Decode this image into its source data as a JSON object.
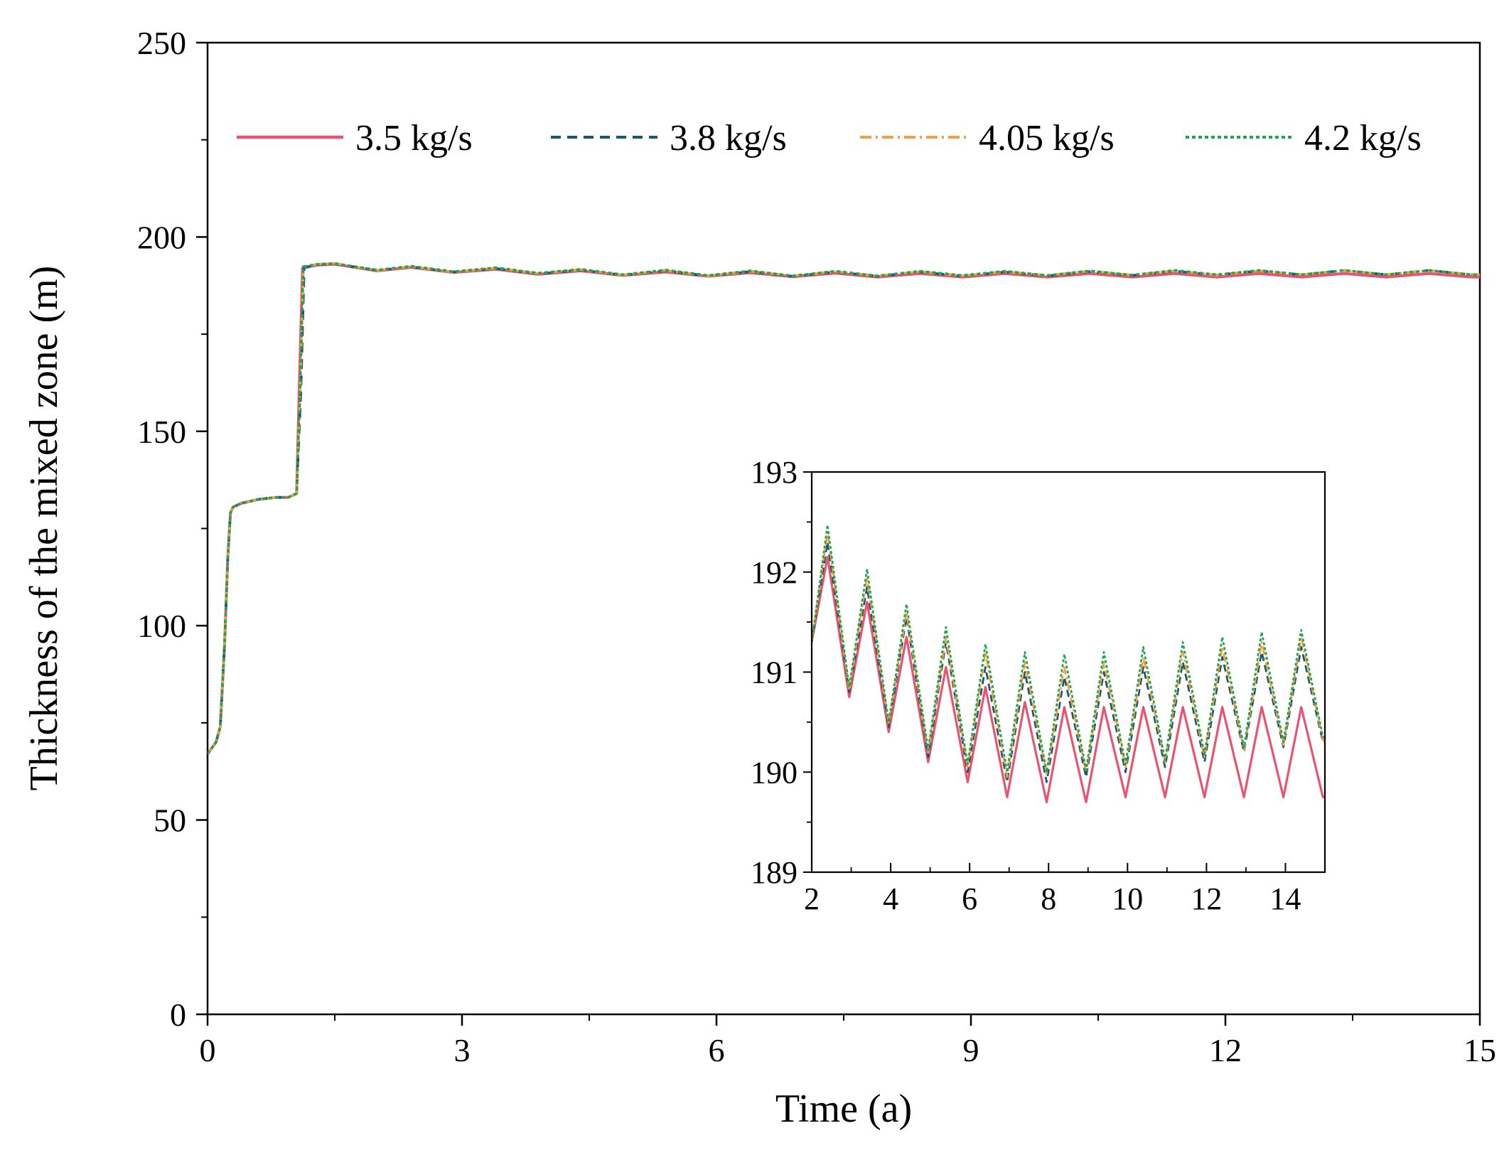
{
  "chart_data": [
    {
      "id": "main",
      "type": "line",
      "title": "",
      "xlabel": "Time (a)",
      "ylabel": "Thickness of the mixed zone (m)",
      "xlim": [
        0,
        15
      ],
      "ylim": [
        0,
        250
      ],
      "xticks": [
        0,
        3,
        6,
        9,
        12,
        15
      ],
      "yticks": [
        0,
        50,
        100,
        150,
        200,
        250
      ],
      "legend_position": "top",
      "series": [
        {
          "name": "3.5 kg/s",
          "color": "#e8546f",
          "style": "solid",
          "x": [
            0,
            0.1,
            0.15,
            0.2,
            0.24,
            0.27,
            0.3,
            0.4,
            0.6,
            0.8,
            0.95,
            1.05,
            1.08,
            1.12,
            1.3,
            1.5,
            2.0,
            2.4,
            2.9,
            3.4,
            3.9,
            4.4,
            4.9,
            5.4,
            5.9,
            6.4,
            6.9,
            7.4,
            7.9,
            8.4,
            8.9,
            9.4,
            9.9,
            10.4,
            10.9,
            11.4,
            11.9,
            12.4,
            12.9,
            13.4,
            13.9,
            14.4,
            14.9,
            15
          ],
          "y": [
            67,
            70,
            74,
            95,
            118,
            129,
            130.5,
            131.5,
            132.5,
            133,
            133,
            134,
            160,
            192,
            192.8,
            193,
            191.3,
            192.2,
            190.9,
            191.7,
            190.4,
            191.3,
            190.1,
            191.0,
            189.9,
            190.8,
            189.8,
            190.7,
            189.7,
            190.6,
            189.7,
            190.6,
            189.7,
            190.6,
            189.7,
            190.6,
            189.7,
            190.6,
            189.7,
            190.6,
            189.7,
            190.6,
            189.7,
            189.7
          ]
        },
        {
          "name": "3.8 kg/s",
          "color": "#17547a",
          "style": "dashed",
          "x": [
            0,
            0.1,
            0.15,
            0.2,
            0.24,
            0.27,
            0.3,
            0.4,
            0.6,
            0.8,
            0.95,
            1.05,
            1.1,
            1.14,
            1.3,
            1.5,
            2.0,
            2.4,
            2.9,
            3.4,
            3.9,
            4.4,
            4.9,
            5.4,
            5.9,
            6.4,
            6.9,
            7.4,
            7.9,
            8.4,
            8.9,
            9.4,
            9.9,
            10.4,
            10.9,
            11.4,
            11.9,
            12.4,
            12.9,
            13.4,
            13.9,
            14.4,
            14.9,
            15
          ],
          "y": [
            67,
            70,
            74,
            95,
            118,
            129,
            130.5,
            131.5,
            132.5,
            133,
            133,
            134,
            160,
            192.2,
            192.9,
            193.1,
            191.4,
            192.3,
            191.0,
            191.9,
            190.5,
            191.5,
            190.2,
            191.3,
            190.0,
            191.1,
            189.9,
            191.0,
            189.9,
            191.0,
            189.9,
            191.0,
            190.0,
            191.1,
            190.1,
            191.2,
            190.2,
            191.3,
            190.3,
            191.4,
            190.3,
            191.4,
            190.3,
            190.3
          ]
        },
        {
          "name": "4.05 kg/s",
          "color": "#f5a040",
          "style": "dashdot",
          "x": [
            0,
            0.1,
            0.15,
            0.2,
            0.24,
            0.27,
            0.3,
            0.4,
            0.6,
            0.8,
            0.95,
            1.05,
            1.09,
            1.13,
            1.3,
            1.5,
            2.0,
            2.4,
            2.9,
            3.4,
            3.9,
            4.4,
            4.9,
            5.4,
            5.9,
            6.4,
            6.9,
            7.4,
            7.9,
            8.4,
            8.9,
            9.4,
            9.9,
            10.4,
            10.9,
            11.4,
            11.9,
            12.4,
            12.9,
            13.4,
            13.9,
            14.4,
            14.9,
            15
          ],
          "y": [
            67,
            70,
            74,
            95,
            118,
            129,
            130.5,
            131.5,
            132.5,
            133,
            133,
            134,
            160,
            192.3,
            193,
            193.2,
            191.4,
            192.4,
            191.0,
            192.0,
            190.6,
            191.6,
            190.2,
            191.4,
            190.0,
            191.2,
            190.0,
            191.1,
            190.0,
            191.1,
            190.0,
            191.1,
            190.1,
            191.2,
            190.2,
            191.3,
            190.2,
            191.3,
            190.3,
            191.4,
            190.3,
            191.4,
            190.3,
            190.3
          ]
        },
        {
          "name": "4.2 kg/s",
          "color": "#1fa550",
          "style": "dotted",
          "x": [
            0,
            0.1,
            0.15,
            0.2,
            0.24,
            0.27,
            0.3,
            0.4,
            0.6,
            0.8,
            0.95,
            1.05,
            1.09,
            1.13,
            1.3,
            1.5,
            2.0,
            2.4,
            2.9,
            3.4,
            3.9,
            4.4,
            4.9,
            5.4,
            5.9,
            6.4,
            6.9,
            7.4,
            7.9,
            8.4,
            8.9,
            9.4,
            9.9,
            10.4,
            10.9,
            11.4,
            11.9,
            12.4,
            12.9,
            13.4,
            13.9,
            14.4,
            14.9,
            15
          ],
          "y": [
            67,
            70,
            74,
            95,
            118,
            129,
            130.5,
            131.5,
            132.5,
            133,
            133,
            134,
            160,
            192.4,
            193,
            193.2,
            191.5,
            192.5,
            191.1,
            192.1,
            190.7,
            191.7,
            190.3,
            191.5,
            190.1,
            191.3,
            190.0,
            191.2,
            190.0,
            191.2,
            190.1,
            191.2,
            190.1,
            191.3,
            190.2,
            191.4,
            190.3,
            191.4,
            190.3,
            191.4,
            190.3,
            191.4,
            190.3,
            190.3
          ]
        }
      ]
    },
    {
      "id": "inset",
      "type": "line",
      "title": "",
      "xlabel": "",
      "ylabel": "",
      "xlim": [
        2,
        15
      ],
      "ylim": [
        189,
        193
      ],
      "xticks": [
        2,
        4,
        6,
        8,
        10,
        12,
        14
      ],
      "yticks": [
        189,
        190,
        191,
        192,
        193
      ],
      "legend_position": "none",
      "series": [
        {
          "name": "3.5 kg/s",
          "x": [
            2,
            2.4,
            2.95,
            3.4,
            3.95,
            4.4,
            4.95,
            5.4,
            5.95,
            6.4,
            6.95,
            7.4,
            7.95,
            8.4,
            8.95,
            9.4,
            9.95,
            10.4,
            10.95,
            11.4,
            11.95,
            12.4,
            12.95,
            13.4,
            13.95,
            14.4,
            14.95,
            15
          ],
          "y": [
            191.3,
            192.15,
            190.75,
            191.7,
            190.4,
            191.35,
            190.1,
            191.05,
            189.9,
            190.85,
            189.75,
            190.7,
            189.7,
            190.65,
            189.7,
            190.65,
            189.75,
            190.65,
            189.75,
            190.65,
            189.75,
            190.65,
            189.75,
            190.65,
            189.75,
            190.65,
            189.75,
            189.75
          ]
        },
        {
          "name": "3.8 kg/s",
          "x": [
            2,
            2.4,
            2.95,
            3.4,
            3.95,
            4.4,
            4.95,
            5.4,
            5.95,
            6.4,
            6.95,
            7.4,
            7.95,
            8.4,
            8.95,
            9.4,
            9.95,
            10.4,
            10.95,
            11.4,
            11.95,
            12.4,
            12.95,
            13.4,
            13.95,
            14.4,
            14.95,
            15
          ],
          "y": [
            191.3,
            192.3,
            190.8,
            191.85,
            190.45,
            191.55,
            190.15,
            191.3,
            190.0,
            191.05,
            189.9,
            191.0,
            189.9,
            190.95,
            189.95,
            191.0,
            190.0,
            191.05,
            190.05,
            191.1,
            190.1,
            191.15,
            190.2,
            191.2,
            190.25,
            191.25,
            190.3,
            190.3
          ]
        },
        {
          "name": "4.05 kg/s",
          "x": [
            2,
            2.4,
            2.95,
            3.4,
            3.95,
            4.4,
            4.95,
            5.4,
            5.95,
            6.4,
            6.95,
            7.4,
            7.95,
            8.4,
            8.95,
            9.4,
            9.95,
            10.4,
            10.95,
            11.4,
            11.95,
            12.4,
            12.95,
            13.4,
            13.95,
            14.4,
            14.95,
            15
          ],
          "y": [
            191.3,
            192.4,
            190.82,
            191.95,
            190.48,
            191.6,
            190.2,
            191.35,
            190.05,
            191.2,
            189.95,
            191.1,
            189.98,
            191.05,
            190.0,
            191.1,
            190.05,
            191.15,
            190.1,
            191.2,
            190.15,
            191.25,
            190.22,
            191.3,
            190.27,
            191.35,
            190.32,
            190.32
          ]
        },
        {
          "name": "4.2 kg/s",
          "x": [
            2,
            2.4,
            2.95,
            3.4,
            3.95,
            4.4,
            4.95,
            5.4,
            5.95,
            6.4,
            6.95,
            7.4,
            7.95,
            8.4,
            8.95,
            9.4,
            9.95,
            10.4,
            10.95,
            11.4,
            11.95,
            12.4,
            12.95,
            13.4,
            13.95,
            14.4,
            14.95,
            15
          ],
          "y": [
            191.3,
            192.47,
            190.85,
            192.03,
            190.5,
            191.68,
            190.22,
            191.45,
            190.08,
            191.28,
            190.0,
            191.2,
            190.0,
            191.18,
            190.02,
            191.2,
            190.08,
            191.25,
            190.12,
            191.3,
            190.18,
            191.35,
            190.25,
            191.4,
            190.3,
            191.42,
            190.35,
            190.35
          ]
        }
      ]
    }
  ]
}
